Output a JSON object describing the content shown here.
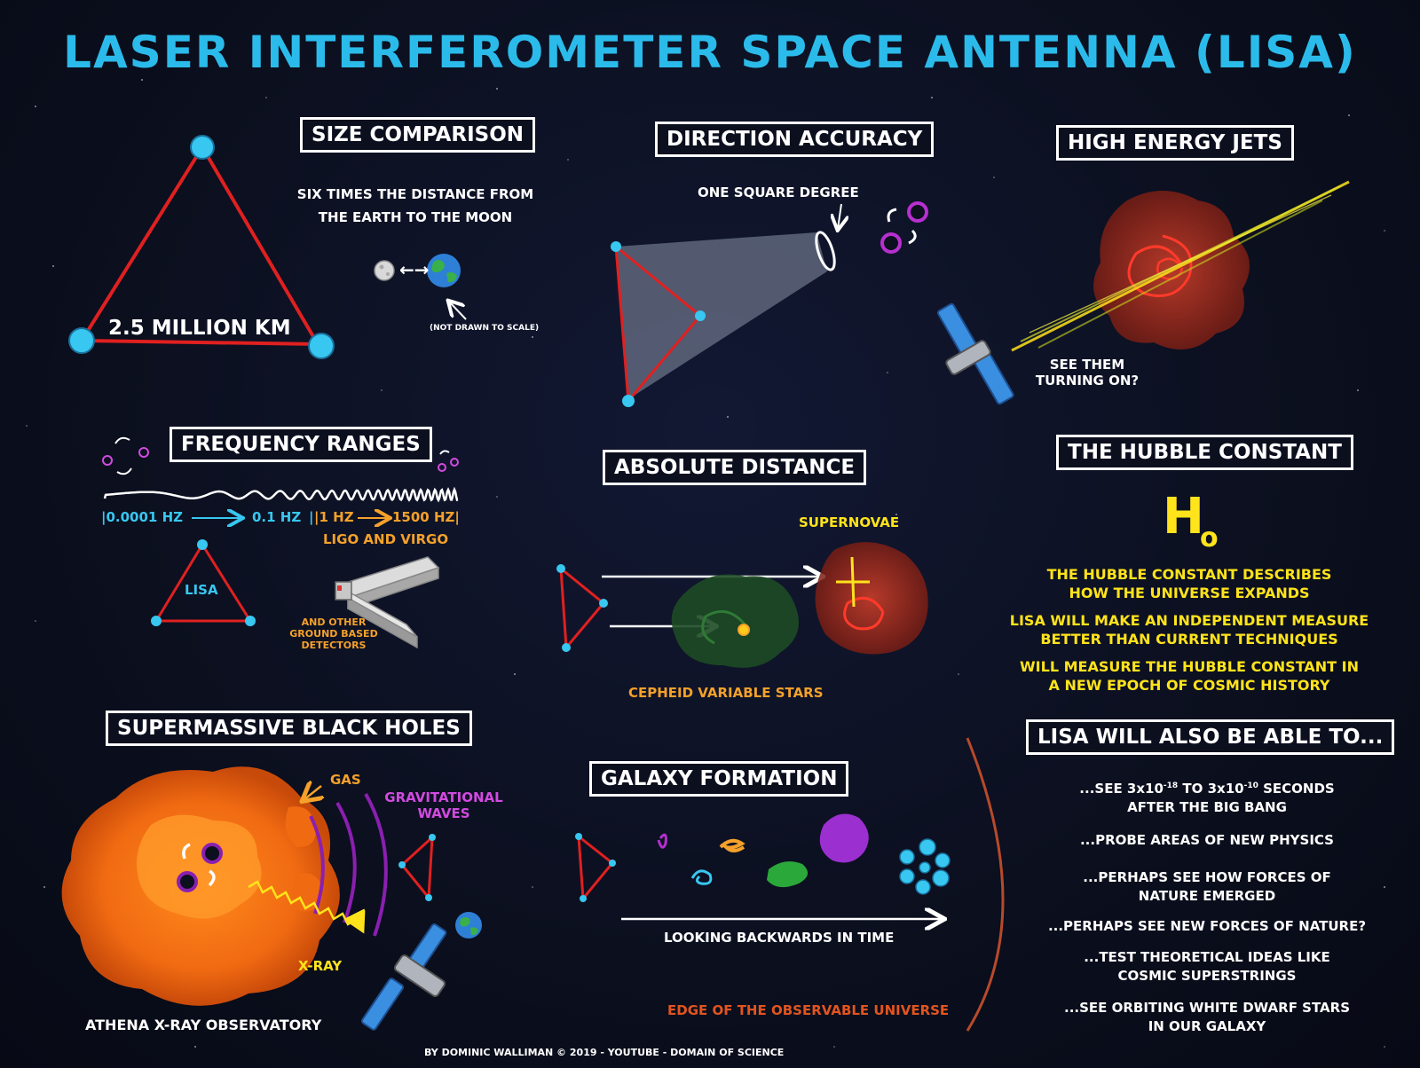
{
  "title": "LASER INTERFEROMETER SPACE ANTENNA (LISA)",
  "size_comparison": {
    "heading": "SIZE COMPARISON",
    "triangle_label": "2.5 MILLION KM",
    "line1": "SIX TIMES THE DISTANCE FROM",
    "line2": "THE EARTH TO THE MOON",
    "arrow_text": "←→",
    "note": "(NOT DRAWN TO SCALE)"
  },
  "direction_accuracy": {
    "heading": "DIRECTION ACCURACY",
    "label": "ONE SQUARE DEGREE"
  },
  "high_energy_jets": {
    "heading": "HIGH ENERGY JETS",
    "caption_line1": "SEE THEM",
    "caption_line2": "TURNING ON?"
  },
  "frequency_ranges": {
    "heading": "FREQUENCY RANGES",
    "lisa_range_start": "|0.0001 HZ",
    "lisa_range_end": "0.1 HZ",
    "separator": "|",
    "ligo_range_start": "|1 HZ",
    "ligo_range_end": "1500 HZ|",
    "ligo_label": "LIGO AND VIRGO",
    "lisa_label": "LISA",
    "ground_line1": "AND OTHER",
    "ground_line2": "GROUND BASED",
    "ground_line3": "DETECTORS"
  },
  "absolute_distance": {
    "heading": "ABSOLUTE DISTANCE",
    "supernovae": "SUPERNOVAE",
    "cepheid": "CEPHEID VARIABLE STARS"
  },
  "hubble_constant": {
    "heading": "THE HUBBLE CONSTANT",
    "symbol": "H",
    "subscript": "o",
    "p1_line1": "THE HUBBLE CONSTANT DESCRIBES",
    "p1_line2": "HOW THE UNIVERSE EXPANDS",
    "p2_line1": "LISA WILL MAKE AN INDEPENDENT MEASURE",
    "p2_line2": "BETTER THAN CURRENT TECHNIQUES",
    "p3_line1": "WILL MEASURE THE HUBBLE CONSTANT IN",
    "p3_line2": "A NEW EPOCH OF COSMIC HISTORY"
  },
  "supermassive_black_holes": {
    "heading": "SUPERMASSIVE BLACK HOLES",
    "gas": "GAS",
    "gw_line1": "GRAVITATIONAL",
    "gw_line2": "WAVES",
    "xray": "X-RAY",
    "observatory": "ATHENA X-RAY OBSERVATORY"
  },
  "galaxy_formation": {
    "heading": "GALAXY FORMATION",
    "looking_back": "LOOKING BACKWARDS IN TIME",
    "edge": "EDGE OF THE OBSERVABLE UNIVERSE"
  },
  "also_able": {
    "heading": "LISA WILL ALSO BE ABLE TO...",
    "item1_pre": "...SEE 3x10",
    "item1_exp1": "-18",
    "item1_mid": " TO 3x10",
    "item1_exp2": "-10",
    "item1_post": " SECONDS",
    "item1_line2": "AFTER THE BIG BANG",
    "item2": "...PROBE AREAS OF NEW PHYSICS",
    "item3_line1": "...PERHAPS SEE HOW FORCES OF",
    "item3_line2": "NATURE EMERGED",
    "item4": "...PERHAPS SEE NEW FORCES OF NATURE?",
    "item5_line1": "...TEST THEORETICAL IDEAS LIKE",
    "item5_line2": "COSMIC SUPERSTRINGS",
    "item6_line1": "...SEE ORBITING WHITE DWARF STARS",
    "item6_line2": "IN OUR GALAXY"
  },
  "credit": "BY DOMINIC WALLIMAN © 2019 - YOUTUBE - DOMAIN OF SCIENCE",
  "colors": {
    "title_blue": "#2bbbea",
    "accent_yellow": "#ffe31b",
    "accent_orange": "#f5a12a",
    "accent_purple": "#d24ae0",
    "triangle_red": "#e02020",
    "background": "#0b0f1e"
  }
}
